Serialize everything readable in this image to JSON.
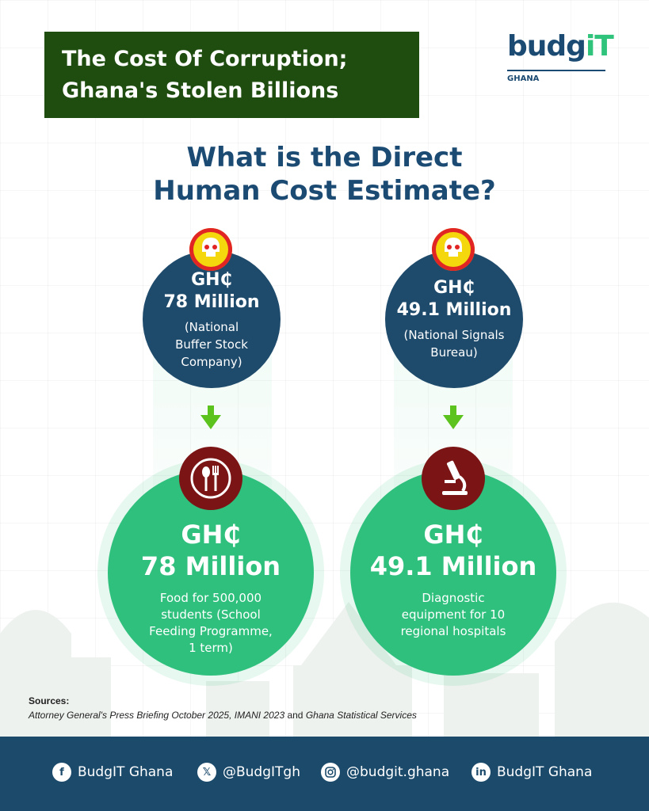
{
  "header": {
    "title_line1": "The Cost Of Corruption;",
    "title_line2": "Ghana's Stolen Billions"
  },
  "logo": {
    "word_main": "budg",
    "word_accent": "iT",
    "country": "GHANA",
    "colors": {
      "primary": "#1b4a73",
      "accent": "#2fc37c"
    }
  },
  "heading": {
    "line1": "What is the Direct",
    "line2": "Human Cost Estimate?"
  },
  "comparisons": [
    {
      "source": {
        "currency": "GH₵",
        "amount": "78 Million",
        "org_line1": "(National",
        "org_line2": "Buffer Stock",
        "org_line3": "Company)"
      },
      "outcome": {
        "currency": "GH₵",
        "amount": "78 Million",
        "desc_line1": "Food for 500,000",
        "desc_line2": "students (School",
        "desc_line3": "Feeding Programme,",
        "desc_line4": "1 term)",
        "icon": "utensils-icon"
      }
    },
    {
      "source": {
        "currency": "GH₵",
        "amount": "49.1 Million",
        "org_line1": "(National Signals",
        "org_line2": "Bureau)"
      },
      "outcome": {
        "currency": "GH₵",
        "amount": "49.1 Million",
        "desc_line1": "Diagnostic",
        "desc_line2": "equipment for 10",
        "desc_line3": "regional hospitals",
        "icon": "microscope-icon"
      }
    }
  ],
  "sources": {
    "label": "Sources:",
    "part1": "Attorney General's Press Briefing October 2025, IMANI 2023",
    "part2": " and ",
    "part3": "Ghana Statistical Services"
  },
  "footer": {
    "facebook": "BudgIT Ghana",
    "x": "@BudgITgh",
    "instagram": "@budgit.ghana",
    "linkedin": "BudgIT Ghana"
  },
  "colors": {
    "title_bg": "#1f4d0f",
    "navy": "#1e4a6b",
    "green": "#2fc07d",
    "maroon": "#7b1414",
    "arrow": "#5cc21e"
  }
}
